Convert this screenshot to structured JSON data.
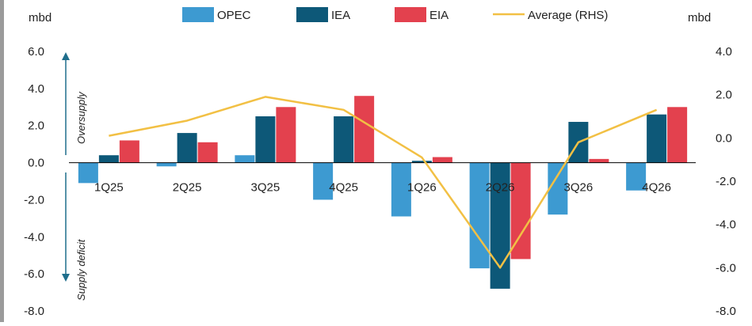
{
  "chart_data": {
    "type": "bar",
    "categories": [
      "1Q25",
      "2Q25",
      "3Q25",
      "4Q25",
      "1Q26",
      "2Q26",
      "3Q26",
      "4Q26"
    ],
    "series": [
      {
        "name": "OPEC",
        "color": "#3d9ad1",
        "values": [
          -1.1,
          -0.2,
          0.4,
          -2.0,
          -2.9,
          -5.7,
          -2.8,
          -1.5
        ]
      },
      {
        "name": "IEA",
        "color": "#0d5878",
        "values": [
          0.4,
          1.6,
          2.5,
          2.5,
          0.1,
          -6.8,
          2.2,
          2.6
        ]
      },
      {
        "name": "EIA",
        "color": "#e3414e",
        "values": [
          1.2,
          1.1,
          3.0,
          3.6,
          0.3,
          -5.2,
          0.2,
          3.0
        ]
      }
    ],
    "line_series": {
      "name": "Average (RHS)",
      "color": "#f2c044",
      "values": [
        0.1,
        0.8,
        1.9,
        1.3,
        -0.9,
        -6.0,
        -0.2,
        1.3
      ]
    },
    "left_axis": {
      "label": "mbd",
      "min": -8,
      "max": 6,
      "ticks": [
        "6.0",
        "4.0",
        "2.0",
        "0.0",
        "-2.0",
        "-4.0",
        "-6.0",
        "-8.0"
      ]
    },
    "right_axis": {
      "label": "mbd",
      "min": -8,
      "max": 4,
      "ticks": [
        "4.0",
        "2.0",
        "0.0",
        "-2.0",
        "-4.0",
        "-6.0",
        "-8.0"
      ]
    },
    "annotations": {
      "oversupply": "Oversupply",
      "deficit": "Supply deficit"
    },
    "legend_position": "top"
  },
  "colors": {
    "axis": "#000000",
    "text": "#222222",
    "arrow": "#1f6e8c",
    "strip": "#9b9b9b"
  }
}
